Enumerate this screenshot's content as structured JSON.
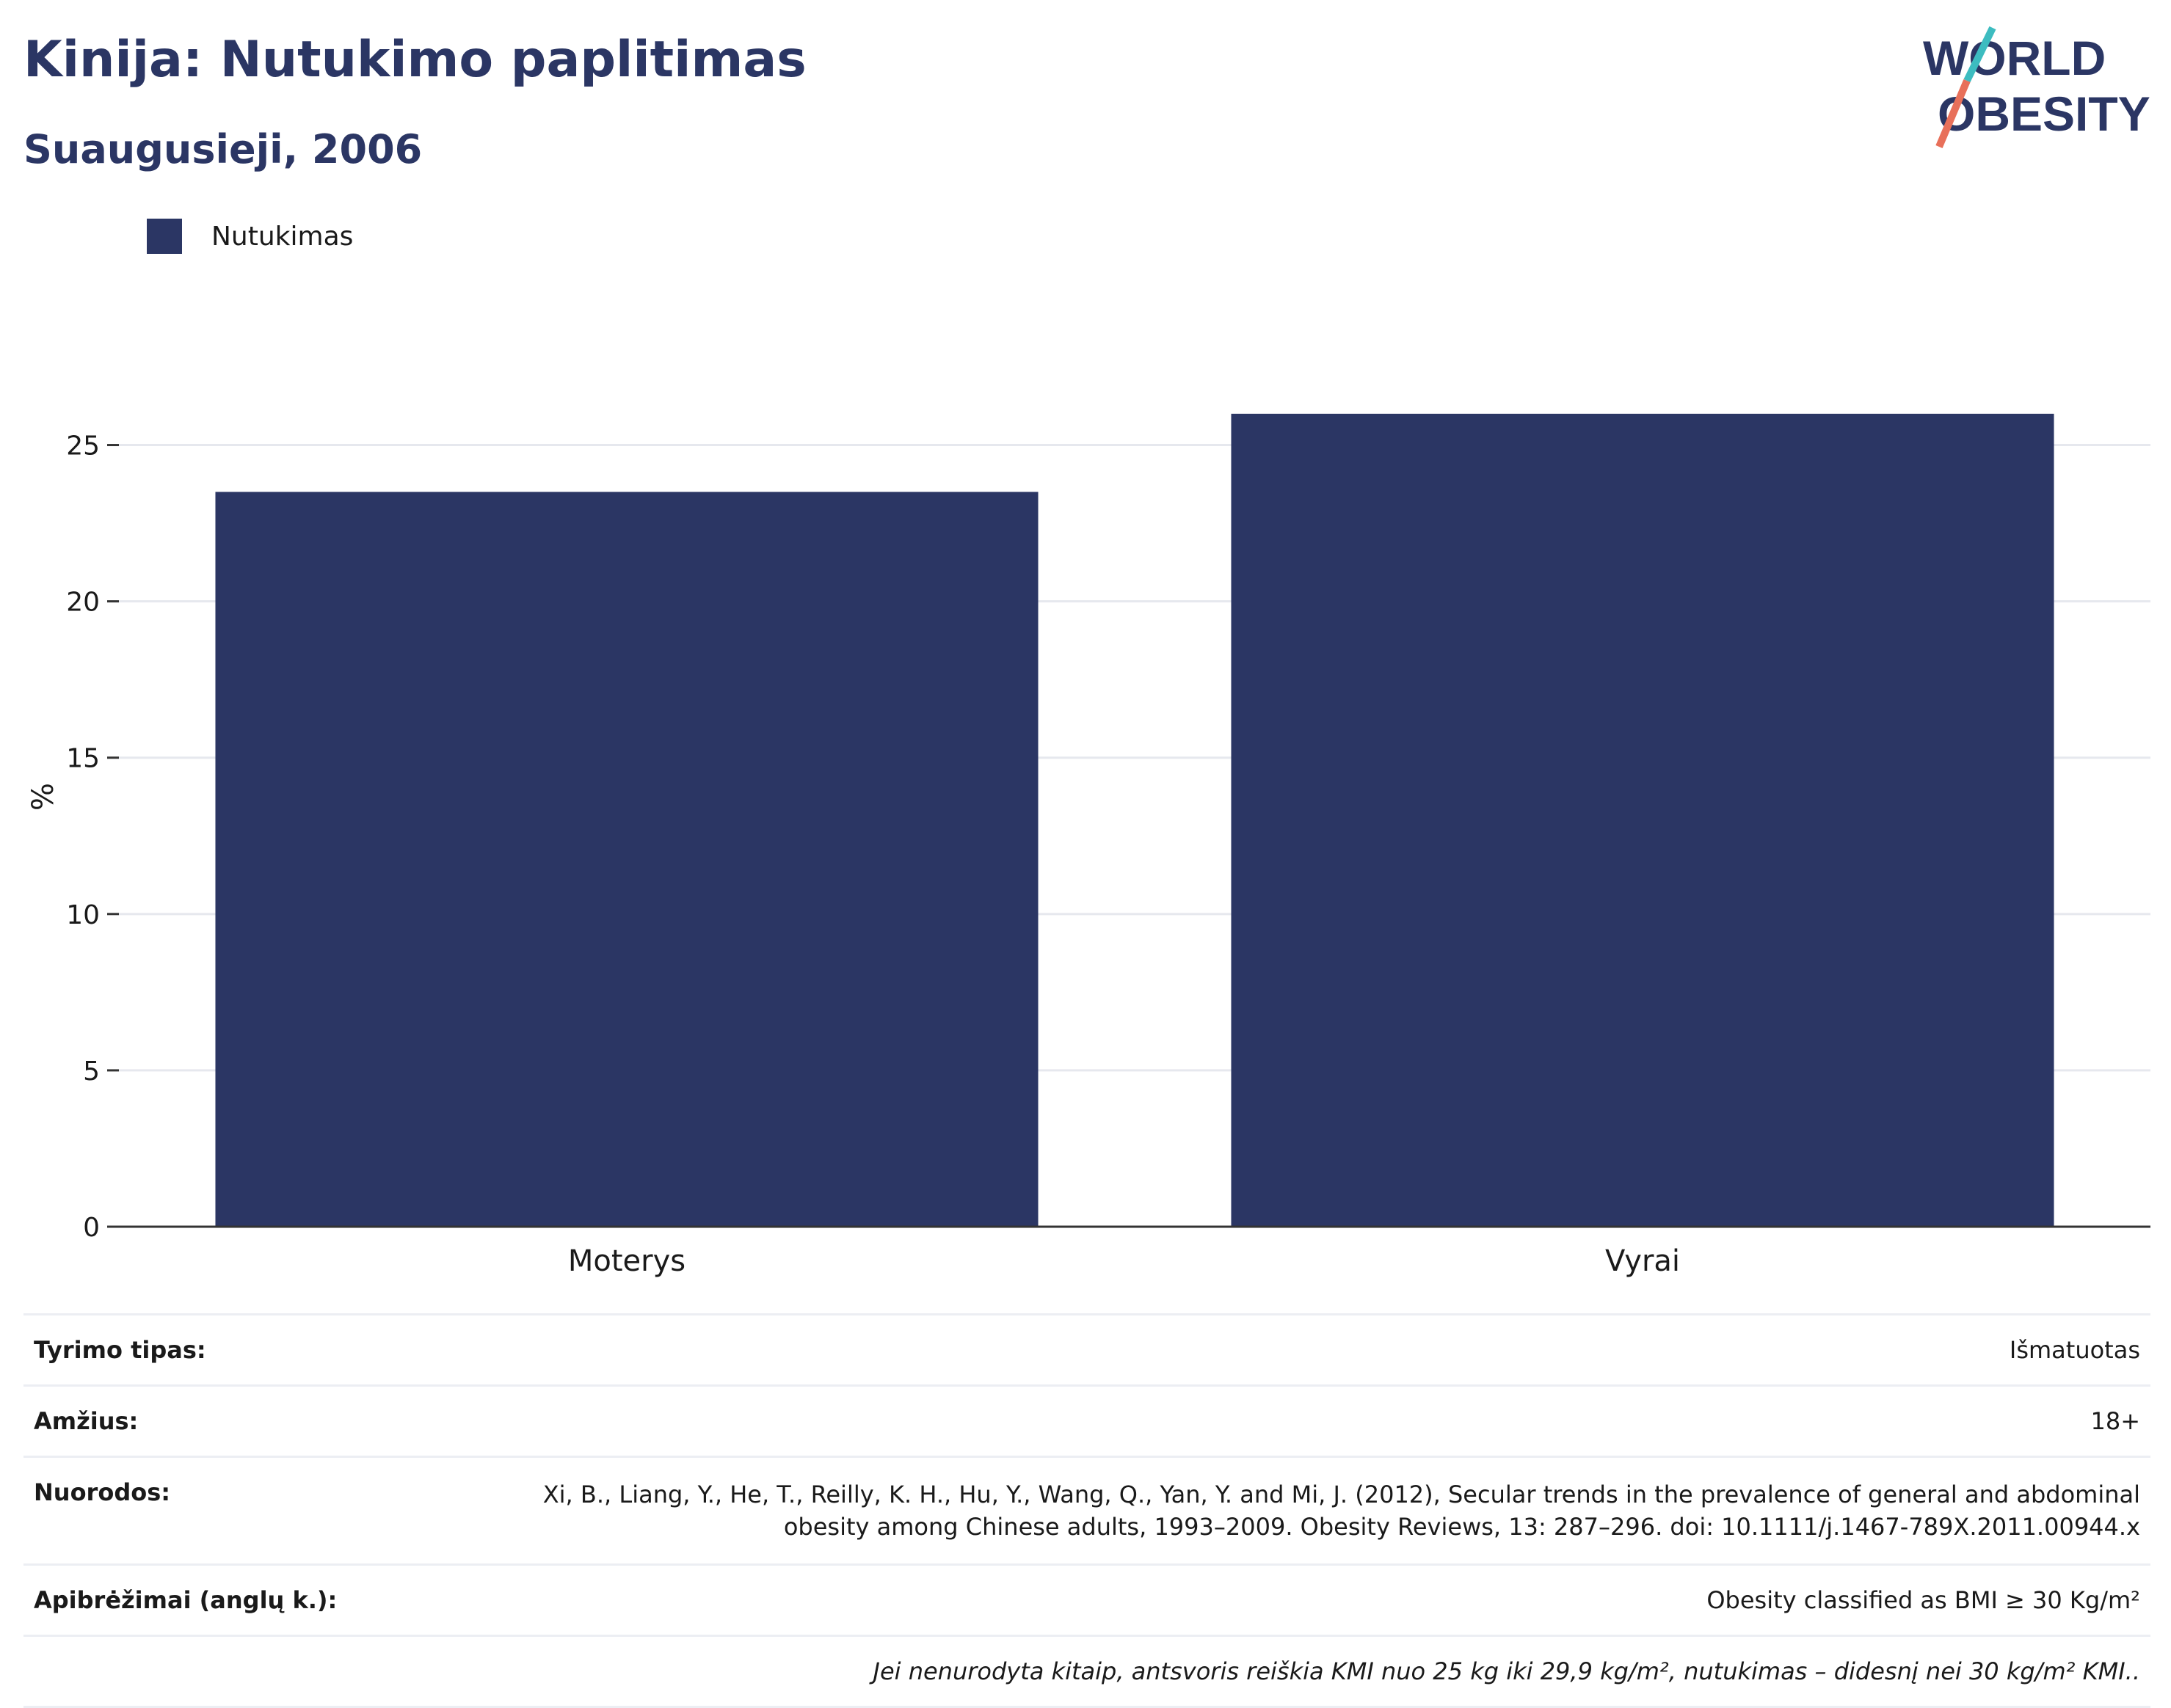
{
  "header": {
    "title": "Kinija: Nutukimo paplitimas",
    "subtitle": "Suaugusieji, 2006"
  },
  "logo": {
    "line1": "WORLD",
    "line2": "OBESITY",
    "accent_teal": "#3dbcc0",
    "accent_coral": "#e8705a"
  },
  "colors": {
    "bar": "#2b3664",
    "grid": "#e6e8ee",
    "axis": "#333333"
  },
  "chart_data": {
    "type": "bar",
    "categories": [
      "Moterys",
      "Vyrai"
    ],
    "series": [
      {
        "name": "Nutukimas",
        "values": [
          23.5,
          26.0
        ]
      }
    ],
    "title": "",
    "xlabel": "",
    "ylabel": "%",
    "ylim": [
      0,
      27.5
    ],
    "yticks": [
      0,
      5,
      10,
      15,
      20,
      25
    ],
    "grid": true,
    "legend_position": "top-left"
  },
  "meta": {
    "rows": [
      {
        "key": "Tyrimo tipas:",
        "value": "Išmatuotas"
      },
      {
        "key": "Amžius:",
        "value": "18+"
      },
      {
        "key": "Nuorodos:",
        "value": "Xi, B., Liang, Y., He, T., Reilly, K. H., Hu, Y., Wang, Q., Yan, Y. and Mi, J. (2012), Secular trends in the prevalence of general and abdominal obesity among Chinese adults, 1993–2009. Obesity Reviews, 13: 287–296. doi: 10.1111/j.1467-789X.2011.00944.x"
      },
      {
        "key": "Apibrėžimai (anglų k.):",
        "value": "Obesity classified as BMI ≥ 30 Kg/m²"
      }
    ],
    "note": "Jei nenurodyta kitaip, antsvoris reiškia KMI nuo 25 kg iki 29,9 kg/m², nutukimas – didesnį nei 30 kg/m² KMI.."
  }
}
